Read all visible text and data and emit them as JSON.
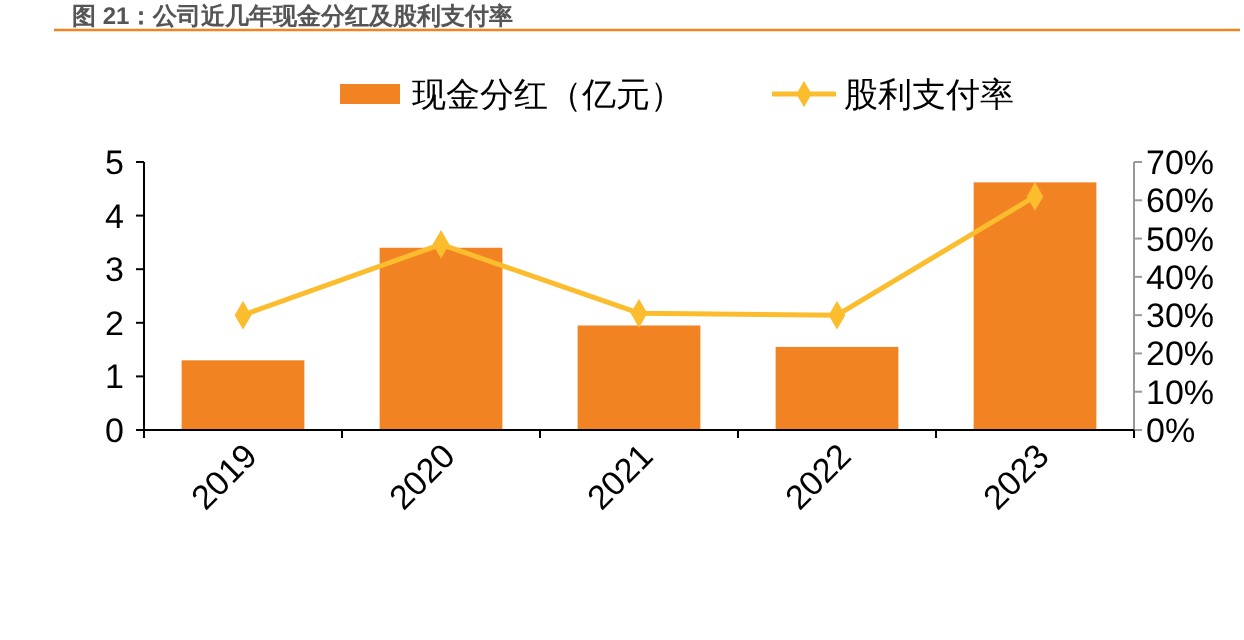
{
  "chart_data": {
    "type": "bar",
    "title": "图 21：公司近几年现金分红及股利支付率",
    "categories": [
      "2019",
      "2020",
      "2021",
      "2022",
      "2023"
    ],
    "series": [
      {
        "name": "现金分红（亿元）",
        "color": "#f28322",
        "values": [
          1.3,
          3.4,
          1.95,
          1.55,
          4.62
        ]
      },
      {
        "name": "股利支付率",
        "type": "line",
        "axis": "y2",
        "color": "#fbbd2e",
        "marker": "diamond",
        "values": [
          30,
          48.5,
          30.5,
          30,
          61
        ]
      }
    ],
    "ylim": [
      0,
      5
    ],
    "yticks": [
      0,
      1,
      2,
      3,
      4,
      5
    ],
    "y2lim": [
      0,
      70
    ],
    "y2ticks": [
      {
        "value": 0,
        "label": "0%"
      },
      {
        "value": 10,
        "label": "10%"
      },
      {
        "value": 20,
        "label": "20%"
      },
      {
        "value": 30,
        "label": "30%"
      },
      {
        "value": 40,
        "label": "40%"
      },
      {
        "value": 50,
        "label": "50%"
      },
      {
        "value": 60,
        "label": "60%"
      },
      {
        "value": 70,
        "label": "70%"
      }
    ],
    "legend": "top",
    "grid": false
  }
}
